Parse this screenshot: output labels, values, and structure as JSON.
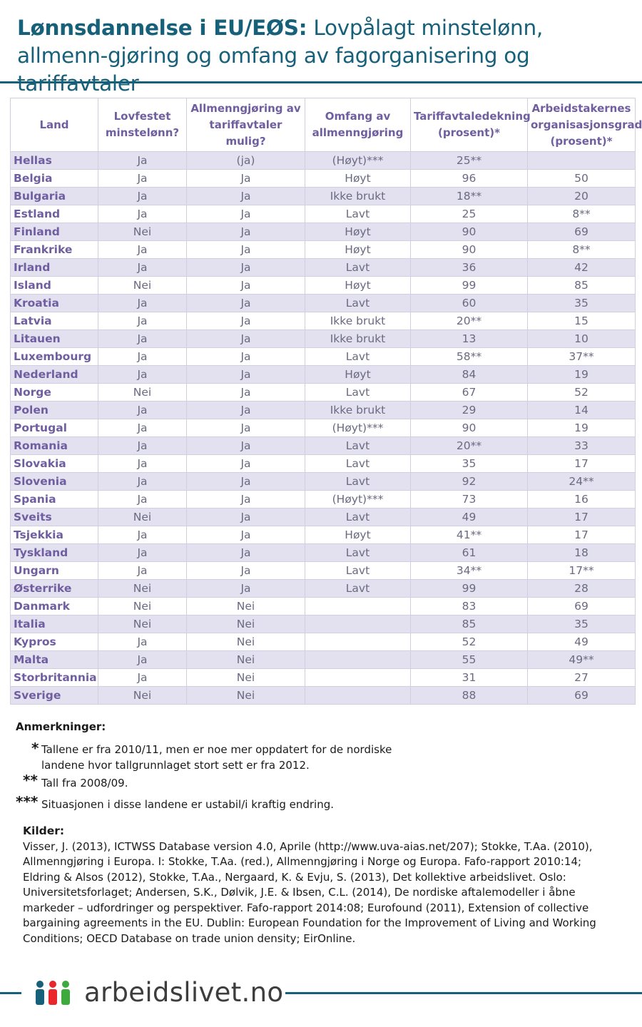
{
  "title": {
    "bold": "Lønnsdannelse i EU/EØS:",
    "rest": " Lovpålagt minstelønn, allmenn-gjøring og omfang av fagorganisering og tariffavtaler"
  },
  "table": {
    "headers": [
      "Land",
      "Lovfestet minstelønn?",
      "Allmenngjøring av tariffavtaler mulig?",
      "Omfang av allmenngjøring",
      "Tariffavtaledekning (prosent)*",
      "Arbeidstakernes organisasjonsgrad (prosent)*"
    ],
    "rows": [
      {
        "land": "Hellas",
        "min": "Ja",
        "allm": "(ja)",
        "omf": "(Høyt)***",
        "tariff": "25**",
        "org": ""
      },
      {
        "land": "Belgia",
        "min": "Ja",
        "allm": "Ja",
        "omf": "Høyt",
        "tariff": "96",
        "org": "50"
      },
      {
        "land": "Bulgaria",
        "min": "Ja",
        "allm": "Ja",
        "omf": "Ikke brukt",
        "tariff": "18**",
        "org": "20"
      },
      {
        "land": "Estland",
        "min": "Ja",
        "allm": "Ja",
        "omf": "Lavt",
        "tariff": "25",
        "org": "8**"
      },
      {
        "land": "Finland",
        "min": "Nei",
        "allm": "Ja",
        "omf": "Høyt",
        "tariff": "90",
        "org": "69"
      },
      {
        "land": "Frankrike",
        "min": "Ja",
        "allm": "Ja",
        "omf": "Høyt",
        "tariff": "90",
        "org": "8**"
      },
      {
        "land": "Irland",
        "min": "Ja",
        "allm": "Ja",
        "omf": "Lavt",
        "tariff": "36",
        "org": "42"
      },
      {
        "land": "Island",
        "min": "Nei",
        "allm": "Ja",
        "omf": "Høyt",
        "tariff": "99",
        "org": "85"
      },
      {
        "land": "Kroatia",
        "min": "Ja",
        "allm": "Ja",
        "omf": "Lavt",
        "tariff": "60",
        "org": "35"
      },
      {
        "land": "Latvia",
        "min": "Ja",
        "allm": "Ja",
        "omf": "Ikke brukt",
        "tariff": "20**",
        "org": "15"
      },
      {
        "land": "Litauen",
        "min": "Ja",
        "allm": "Ja",
        "omf": "Ikke brukt",
        "tariff": "13",
        "org": "10"
      },
      {
        "land": "Luxembourg",
        "min": "Ja",
        "allm": "Ja",
        "omf": "Lavt",
        "tariff": "58**",
        "org": "37**"
      },
      {
        "land": "Nederland",
        "min": "Ja",
        "allm": "Ja",
        "omf": "Høyt",
        "tariff": "84",
        "org": "19"
      },
      {
        "land": "Norge",
        "min": "Nei",
        "allm": "Ja",
        "omf": "Lavt",
        "tariff": "67",
        "org": "52"
      },
      {
        "land": "Polen",
        "min": "Ja",
        "allm": "Ja",
        "omf": "Ikke brukt",
        "tariff": "29",
        "org": "14"
      },
      {
        "land": "Portugal",
        "min": "Ja",
        "allm": "Ja",
        "omf": "(Høyt)***",
        "tariff": "90",
        "org": "19"
      },
      {
        "land": "Romania",
        "min": "Ja",
        "allm": "Ja",
        "omf": "Lavt",
        "tariff": "20**",
        "org": "33"
      },
      {
        "land": "Slovakia",
        "min": "Ja",
        "allm": "Ja",
        "omf": "Lavt",
        "tariff": "35",
        "org": "17"
      },
      {
        "land": "Slovenia",
        "min": "Ja",
        "allm": "Ja",
        "omf": "Lavt",
        "tariff": "92",
        "org": "24**"
      },
      {
        "land": "Spania",
        "min": "Ja",
        "allm": "Ja",
        "omf": "(Høyt)***",
        "tariff": "73",
        "org": "16"
      },
      {
        "land": "Sveits",
        "min": "Nei",
        "allm": "Ja",
        "omf": "Lavt",
        "tariff": "49",
        "org": "17"
      },
      {
        "land": "Tsjekkia",
        "min": "Ja",
        "allm": "Ja",
        "omf": "Høyt",
        "tariff": "41**",
        "org": "17"
      },
      {
        "land": "Tyskland",
        "min": "Ja",
        "allm": "Ja",
        "omf": "Lavt",
        "tariff": "61",
        "org": "18"
      },
      {
        "land": "Ungarn",
        "min": "Ja",
        "allm": "Ja",
        "omf": "Lavt",
        "tariff": "34**",
        "org": "17**"
      },
      {
        "land": "Østerrike",
        "min": "Nei",
        "allm": "Ja",
        "omf": "Lavt",
        "tariff": "99",
        "org": "28"
      },
      {
        "land": "Danmark",
        "min": "Nei",
        "allm": "Nei",
        "omf": "",
        "tariff": "83",
        "org": "69"
      },
      {
        "land": "Italia",
        "min": "Nei",
        "allm": "Nei",
        "omf": "",
        "tariff": "85",
        "org": "35"
      },
      {
        "land": "Kypros",
        "min": "Ja",
        "allm": "Nei",
        "omf": "",
        "tariff": "52",
        "org": "49"
      },
      {
        "land": "Malta",
        "min": "Ja",
        "allm": "Nei",
        "omf": "",
        "tariff": "55",
        "org": "49**"
      },
      {
        "land": "Storbritannia",
        "min": "Ja",
        "allm": "Nei",
        "omf": "",
        "tariff": "31",
        "org": "27"
      },
      {
        "land": "Sverige",
        "min": "Nei",
        "allm": "Nei",
        "omf": "",
        "tariff": "88",
        "org": "69"
      }
    ]
  },
  "notes": {
    "title": "Anmerkninger:",
    "n1_star": "*",
    "n1_line1": "Tallene er fra 2010/11, men er noe mer oppdatert for de nordiske",
    "n1_line2": "landene hvor tallgrunnlaget stort sett er fra 2012.",
    "n2_star": "**",
    "n2_text": "Tall fra 2008/09.",
    "n3_star": "***",
    "n3_text": "Situasjonen i disse landene er ustabil/i kraftig endring."
  },
  "sources": {
    "title": "Kilder:",
    "text": "Visser, J. (2013), ICTWSS Database version 4.0, Aprile (http://www.uva-aias.net/207); Stokke, T.Aa. (2010), Allmenngjøring i Europa. I: Stokke, T.Aa. (red.), Allmenngjøring i Norge og Europa. Fafo-rapport 2010:14; Eldring & Alsos (2012), Stokke, T.Aa., Nergaard, K. & Evju, S. (2013), Det kollektive arbeidslivet. Oslo: Universitetsforlaget; Andersen, S.K., Dølvik, J.E. & Ibsen, C.L. (2014), De nordiske aftalemodeller i åbne markeder – udfordringer og perspektiver. Fafo-rapport 2014:08; Eurofound (2011), Extension of collective bargaining agreements in the EU. Dublin: European Foundation for the Improvement of Living and Working Conditions; OECD Database on trade union density; EirOnline."
  },
  "footer": {
    "logo_text": "arbeidslivet.no"
  },
  "colors": {
    "title": "#17607a",
    "header_text": "#6f5ea0",
    "ja": "#3ea93e",
    "nei": "#e8262b",
    "ja_parens": "#f07f22",
    "band": "#e3e1f0"
  }
}
